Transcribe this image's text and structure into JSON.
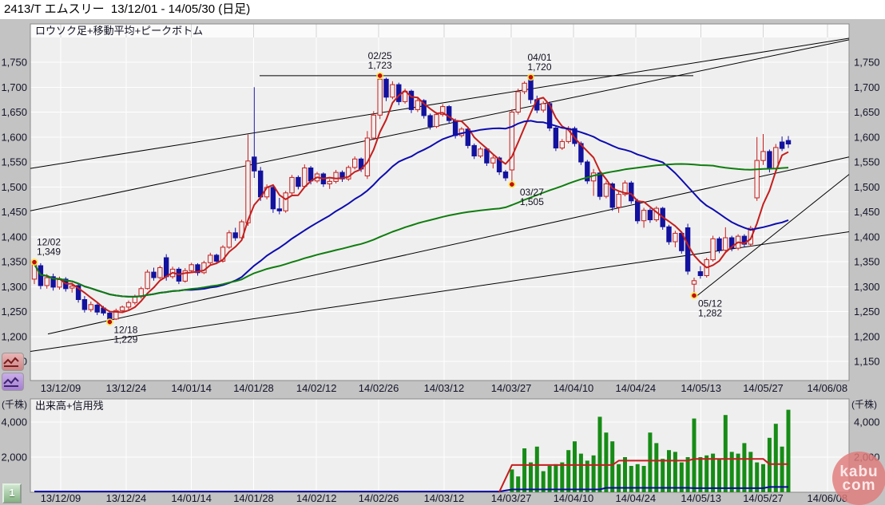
{
  "ui": {
    "title": "2413/T エムスリー  13/12/01 - 14/05/30 (日足)",
    "volume_button_label": "1",
    "logo": {
      "line1": "kabu",
      "line2": "com"
    }
  },
  "colors": {
    "outer_bg": "#c3c3c3",
    "plot_bg": "#f0efef",
    "grid": "#ffffff",
    "plot_border": "#8a8a8a",
    "text": "#14142a",
    "candle_up": "#c41e1e",
    "candle_down": "#12129e",
    "ma_short": "#c41e1e",
    "ma_mid": "#0c0cae",
    "ma_long": "#0f7d0f",
    "trendline": "#000000",
    "marker_dot": "#d40000",
    "marker_halo": "#ffe23d",
    "volume_bar": "#168c16",
    "margin_line": "#c41e1e",
    "lending_line": "#0b0b9e"
  },
  "x_labels": [
    {
      "i": 4.2,
      "label": "13/12/09"
    },
    {
      "i": 14.6,
      "label": "13/12/24"
    },
    {
      "i": 25.0,
      "label": "14/01/14"
    },
    {
      "i": 34.9,
      "label": "14/01/28"
    },
    {
      "i": 44.9,
      "label": "14/02/12"
    },
    {
      "i": 54.8,
      "label": "14/02/26"
    },
    {
      "i": 65.2,
      "label": "14/03/12"
    },
    {
      "i": 75.9,
      "label": "14/03/27"
    },
    {
      "i": 85.8,
      "label": "14/04/10"
    },
    {
      "i": 95.7,
      "label": "14/04/24"
    },
    {
      "i": 106.1,
      "label": "14/05/13"
    },
    {
      "i": 116.0,
      "label": "14/05/27"
    },
    {
      "i": 126.2,
      "label": "14/06/08"
    }
  ],
  "chart_data": [
    {
      "type": "candlestick",
      "title": "ロウソク足+移動平均+ピークボトム",
      "period_label": "日足",
      "symbol": "2413/T",
      "symbol_name": "エムスリー",
      "date_range": "13/12/01 - 14/05/30",
      "ylim": [
        1111,
        1827
      ],
      "y_ticks": [
        {
          "v": 1150,
          "label": "1,150"
        },
        {
          "v": 1200,
          "label": "1,200"
        },
        {
          "v": 1250,
          "label": "1,250"
        },
        {
          "v": 1300,
          "label": "1,300"
        },
        {
          "v": 1350,
          "label": "1,350"
        },
        {
          "v": 1400,
          "label": "1,400"
        },
        {
          "v": 1450,
          "label": "1,450"
        },
        {
          "v": 1500,
          "label": "1,500"
        },
        {
          "v": 1550,
          "label": "1,550"
        },
        {
          "v": 1600,
          "label": "1,600"
        },
        {
          "v": 1650,
          "label": "1,650"
        },
        {
          "v": 1700,
          "label": "1,700"
        },
        {
          "v": 1750,
          "label": "1,750"
        }
      ],
      "moving_averages": [
        {
          "name": "ma-short",
          "period": 5,
          "color_key": "ma_short"
        },
        {
          "name": "ma-mid",
          "period": 25,
          "color_key": "ma_mid"
        },
        {
          "name": "ma-long",
          "period": 75,
          "color_key": "ma_long"
        }
      ],
      "trendlines": [
        [
          325,
          1723,
          868,
          1723
        ],
        [
          38,
          1537,
          1063,
          1798
        ],
        [
          38,
          1452,
          1063,
          1795
        ],
        [
          60,
          1205,
          1063,
          1560
        ],
        [
          38,
          1170,
          1063,
          1410
        ],
        [
          873,
          1282,
          1063,
          1525
        ]
      ],
      "annotations": [
        {
          "i": 0,
          "p": 1349,
          "side": "above",
          "dx": 18,
          "date": "12/02",
          "value": "1,349"
        },
        {
          "i": 12,
          "p": 1229,
          "side": "below",
          "dx": 20,
          "date": "12/18",
          "value": "1,229"
        },
        {
          "i": 55,
          "p": 1723,
          "side": "above",
          "dx": 0,
          "date": "02/25",
          "value": "1,723"
        },
        {
          "i": 76,
          "p": 1505,
          "side": "below",
          "dx": 25,
          "date": "03/27",
          "value": "1,505"
        },
        {
          "i": 79,
          "p": 1720,
          "side": "above",
          "dx": 11,
          "date": "04/01",
          "value": "1,720"
        },
        {
          "i": 105,
          "p": 1282,
          "side": "below",
          "dx": 20,
          "date": "05/12",
          "value": "1,282"
        }
      ],
      "candles_ohlc": [
        [
          1315,
          1349,
          1305,
          1345
        ],
        [
          1342,
          1347,
          1295,
          1302
        ],
        [
          1302,
          1325,
          1296,
          1318
        ],
        [
          1320,
          1326,
          1292,
          1299
        ],
        [
          1299,
          1320,
          1294,
          1314
        ],
        [
          1315,
          1319,
          1290,
          1296
        ],
        [
          1297,
          1308,
          1288,
          1301
        ],
        [
          1302,
          1305,
          1268,
          1274
        ],
        [
          1274,
          1281,
          1248,
          1254
        ],
        [
          1254,
          1270,
          1249,
          1264
        ],
        [
          1263,
          1266,
          1243,
          1249
        ],
        [
          1257,
          1261,
          1242,
          1247
        ],
        [
          1247,
          1252,
          1229,
          1235
        ],
        [
          1235,
          1256,
          1233,
          1252
        ],
        [
          1252,
          1262,
          1247,
          1259
        ],
        [
          1259,
          1272,
          1254,
          1268
        ],
        [
          1268,
          1284,
          1264,
          1280
        ],
        [
          1280,
          1300,
          1276,
          1296
        ],
        [
          1296,
          1334,
          1294,
          1329
        ],
        [
          1329,
          1338,
          1312,
          1318
        ],
        [
          1318,
          1342,
          1315,
          1338
        ],
        [
          1358,
          1365,
          1312,
          1320
        ],
        [
          1320,
          1340,
          1316,
          1335
        ],
        [
          1335,
          1339,
          1305,
          1311
        ],
        [
          1311,
          1337,
          1308,
          1332
        ],
        [
          1332,
          1348,
          1328,
          1344
        ],
        [
          1344,
          1347,
          1322,
          1328
        ],
        [
          1328,
          1352,
          1325,
          1348
        ],
        [
          1348,
          1368,
          1344,
          1363
        ],
        [
          1363,
          1366,
          1345,
          1351
        ],
        [
          1351,
          1383,
          1348,
          1379
        ],
        [
          1379,
          1413,
          1376,
          1408
        ],
        [
          1408,
          1418,
          1392,
          1398
        ],
        [
          1398,
          1434,
          1395,
          1430
        ],
        [
          1428,
          1605,
          1422,
          1552
        ],
        [
          1560,
          1700,
          1518,
          1532
        ],
        [
          1532,
          1540,
          1472,
          1480
        ],
        [
          1480,
          1505,
          1475,
          1499
        ],
        [
          1499,
          1503,
          1448,
          1456
        ],
        [
          1456,
          1478,
          1445,
          1452
        ],
        [
          1452,
          1492,
          1448,
          1488
        ],
        [
          1488,
          1524,
          1484,
          1519
        ],
        [
          1519,
          1523,
          1495,
          1501
        ],
        [
          1501,
          1545,
          1498,
          1538
        ],
        [
          1538,
          1542,
          1505,
          1512
        ],
        [
          1512,
          1530,
          1508,
          1526
        ],
        [
          1526,
          1529,
          1500,
          1506
        ],
        [
          1506,
          1516,
          1496,
          1511
        ],
        [
          1511,
          1534,
          1507,
          1529
        ],
        [
          1529,
          1533,
          1510,
          1516
        ],
        [
          1516,
          1543,
          1512,
          1539
        ],
        [
          1539,
          1561,
          1535,
          1556
        ],
        [
          1556,
          1559,
          1530,
          1536
        ],
        [
          1522,
          1612,
          1516,
          1598
        ],
        [
          1598,
          1652,
          1594,
          1644
        ],
        [
          1644,
          1723,
          1636,
          1716
        ],
        [
          1716,
          1719,
          1672,
          1680
        ],
        [
          1680,
          1712,
          1676,
          1705
        ],
        [
          1705,
          1709,
          1664,
          1671
        ],
        [
          1671,
          1697,
          1667,
          1692
        ],
        [
          1692,
          1695,
          1648,
          1655
        ],
        [
          1655,
          1678,
          1650,
          1673
        ],
        [
          1673,
          1676,
          1637,
          1643
        ],
        [
          1643,
          1647,
          1615,
          1621
        ],
        [
          1621,
          1650,
          1618,
          1645
        ],
        [
          1645,
          1666,
          1641,
          1661
        ],
        [
          1661,
          1664,
          1627,
          1633
        ],
        [
          1633,
          1637,
          1597,
          1603
        ],
        [
          1603,
          1620,
          1599,
          1616
        ],
        [
          1616,
          1619,
          1577,
          1583
        ],
        [
          1583,
          1587,
          1556,
          1562
        ],
        [
          1562,
          1580,
          1558,
          1576
        ],
        [
          1576,
          1579,
          1542,
          1548
        ],
        [
          1548,
          1563,
          1537,
          1558
        ],
        [
          1558,
          1561,
          1524,
          1530
        ],
        [
          1530,
          1534,
          1512,
          1518
        ],
        [
          1534,
          1656,
          1505,
          1650
        ],
        [
          1650,
          1697,
          1645,
          1691
        ],
        [
          1691,
          1712,
          1686,
          1708
        ],
        [
          1716,
          1720,
          1667,
          1675
        ],
        [
          1675,
          1683,
          1648,
          1654
        ],
        [
          1654,
          1672,
          1649,
          1667
        ],
        [
          1667,
          1671,
          1612,
          1618
        ],
        [
          1618,
          1622,
          1572,
          1578
        ],
        [
          1578,
          1596,
          1574,
          1591
        ],
        [
          1591,
          1622,
          1587,
          1617
        ],
        [
          1617,
          1621,
          1581,
          1587
        ],
        [
          1587,
          1591,
          1544,
          1550
        ],
        [
          1550,
          1554,
          1506,
          1512
        ],
        [
          1512,
          1536,
          1482,
          1528
        ],
        [
          1528,
          1531,
          1474,
          1481
        ],
        [
          1481,
          1511,
          1477,
          1506
        ],
        [
          1506,
          1509,
          1452,
          1459
        ],
        [
          1459,
          1490,
          1448,
          1485
        ],
        [
          1485,
          1513,
          1481,
          1508
        ],
        [
          1508,
          1512,
          1466,
          1472
        ],
        [
          1472,
          1476,
          1426,
          1432
        ],
        [
          1432,
          1458,
          1418,
          1453
        ],
        [
          1453,
          1457,
          1428,
          1434
        ],
        [
          1434,
          1461,
          1430,
          1457
        ],
        [
          1457,
          1460,
          1414,
          1420
        ],
        [
          1420,
          1424,
          1384,
          1390
        ],
        [
          1390,
          1412,
          1379,
          1407
        ],
        [
          1407,
          1410,
          1366,
          1372
        ],
        [
          1418,
          1426,
          1324,
          1331
        ],
        [
          1305,
          1318,
          1282,
          1312
        ],
        [
          1330,
          1341,
          1316,
          1322
        ],
        [
          1322,
          1358,
          1318,
          1354
        ],
        [
          1354,
          1402,
          1350,
          1396
        ],
        [
          1396,
          1400,
          1367,
          1373
        ],
        [
          1373,
          1419,
          1369,
          1398
        ],
        [
          1398,
          1402,
          1371,
          1377
        ],
        [
          1377,
          1405,
          1373,
          1401
        ],
        [
          1401,
          1405,
          1379,
          1385
        ],
        [
          1385,
          1422,
          1381,
          1417
        ],
        [
          1478,
          1600,
          1472,
          1553
        ],
        [
          1553,
          1606,
          1544,
          1571
        ],
        [
          1571,
          1575,
          1529,
          1537
        ],
        [
          1537,
          1586,
          1533,
          1579
        ],
        [
          1590,
          1601,
          1572,
          1577
        ],
        [
          1593,
          1602,
          1578,
          1586
        ]
      ]
    },
    {
      "type": "bar",
      "title": "出来高+信用残",
      "unit_label": "(千株)",
      "ylim": [
        0,
        5320
      ],
      "y_ticks": [
        {
          "v": 2000,
          "label": "2,000"
        },
        {
          "v": 4000,
          "label": "4,000"
        }
      ],
      "bars": {
        "start_index": 76,
        "values": [
          1300,
          900,
          2500,
          1700,
          2600,
          1200,
          1500,
          1600,
          1700,
          2400,
          2900,
          2200,
          1800,
          2100,
          4300,
          3400,
          2900,
          1600,
          2000,
          1500,
          1600,
          1500,
          3400,
          2800,
          1900,
          2400,
          2300,
          1700,
          2000,
          4200,
          2000,
          2100,
          2200,
          1900,
          4400,
          2300,
          2200,
          2800,
          2300,
          1700,
          1600,
          3100,
          3900,
          2600,
          4700
        ]
      },
      "margin_line_points": [
        [
          74,
          20
        ],
        [
          76,
          1550
        ],
        [
          92,
          1550
        ],
        [
          93,
          1800
        ],
        [
          104,
          1800
        ],
        [
          105,
          1900
        ],
        [
          116,
          1900
        ],
        [
          117,
          1600
        ],
        [
          120,
          1600
        ]
      ],
      "lending_line_points": [
        [
          0,
          40
        ],
        [
          74,
          40
        ],
        [
          76,
          160
        ],
        [
          90,
          160
        ],
        [
          91,
          250
        ],
        [
          104,
          250
        ],
        [
          105,
          230
        ],
        [
          116,
          230
        ],
        [
          117,
          300
        ],
        [
          120,
          300
        ]
      ]
    }
  ]
}
